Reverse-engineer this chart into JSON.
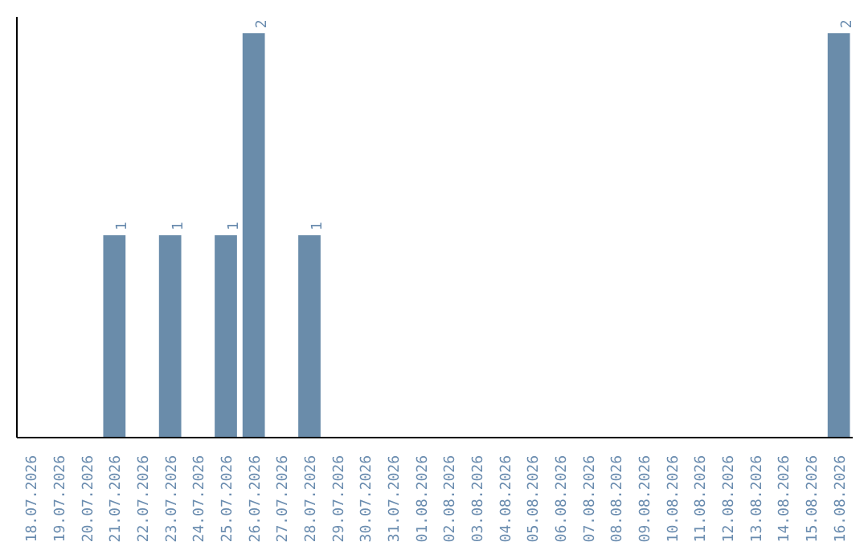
{
  "chart_data": {
    "type": "bar",
    "categories": [
      "18.07.2026",
      "19.07.2026",
      "20.07.2026",
      "21.07.2026",
      "22.07.2026",
      "23.07.2026",
      "24.07.2026",
      "25.07.2026",
      "26.07.2026",
      "27.07.2026",
      "28.07.2026",
      "29.07.2026",
      "30.07.2026",
      "31.07.2026",
      "01.08.2026",
      "02.08.2026",
      "03.08.2026",
      "04.08.2026",
      "05.08.2026",
      "06.08.2026",
      "07.08.2026",
      "08.08.2026",
      "09.08.2026",
      "10.08.2026",
      "11.08.2026",
      "12.08.2026",
      "13.08.2026",
      "14.08.2026",
      "15.08.2026",
      "16.08.2026"
    ],
    "values": [
      0,
      0,
      0,
      1,
      0,
      1,
      0,
      1,
      2,
      0,
      1,
      0,
      0,
      0,
      0,
      0,
      0,
      0,
      0,
      0,
      0,
      0,
      0,
      0,
      0,
      0,
      0,
      0,
      0,
      2
    ],
    "value_labels": [
      null,
      null,
      null,
      "1",
      null,
      "1",
      null,
      "1",
      "2",
      null,
      "1",
      null,
      null,
      null,
      null,
      null,
      null,
      null,
      null,
      null,
      null,
      null,
      null,
      null,
      null,
      null,
      null,
      null,
      null,
      "2"
    ],
    "color": "#6a8caa",
    "tick_labels": "x"
  }
}
